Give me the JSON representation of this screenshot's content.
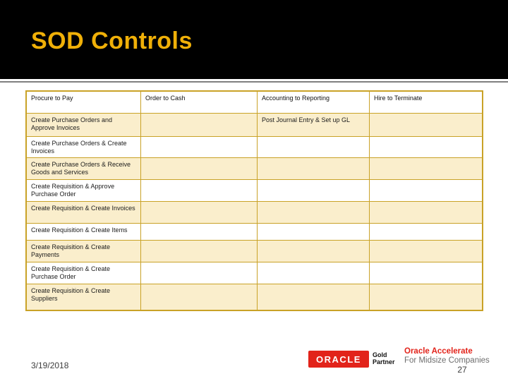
{
  "slide": {
    "title": "SOD Controls"
  },
  "table": {
    "headers": [
      "Procure to Pay",
      "Order to Cash",
      "Accounting to Reporting",
      "Hire to Terminate"
    ],
    "rows": [
      {
        "cells": [
          "Create Purchase Orders and Approve Invoices",
          "",
          "Post Journal Entry & Set up GL",
          ""
        ]
      },
      {
        "cells": [
          "Create Purchase Orders & Create Invoices",
          "",
          "",
          ""
        ]
      },
      {
        "cells": [
          "Create Purchase Orders & Receive Goods and Services",
          "",
          "",
          ""
        ]
      },
      {
        "cells": [
          "Create Requisition & Approve Purchase Order",
          "",
          "",
          ""
        ]
      },
      {
        "cells": [
          "Create Requisition & Create Invoices",
          "",
          "",
          ""
        ]
      },
      {
        "cells": [
          "Create Requisition & Create Items",
          "",
          "",
          ""
        ]
      },
      {
        "cells": [
          "Create Requisition & Create Payments",
          "",
          "",
          ""
        ]
      },
      {
        "cells": [
          "Create Requisition & Create Purchase Order",
          "",
          "",
          ""
        ]
      },
      {
        "cells": [
          "Create Requisition & Create Suppliers",
          "",
          "",
          ""
        ]
      }
    ]
  },
  "footer": {
    "date": "3/19/2018",
    "page_number": "27",
    "oracle_logo_text": "ORACLE",
    "partner_line1": "Gold",
    "partner_line2": "Partner",
    "accelerate_line1": "Oracle Accelerate",
    "accelerate_line2": "For Midsize Companies"
  },
  "colors": {
    "title_gold": "#F0B008",
    "table_border_gold": "#C9A227",
    "shaded_row_cream": "#FAEECC",
    "oracle_red": "#E2231A",
    "subtext_gray": "#6e6e6e"
  }
}
